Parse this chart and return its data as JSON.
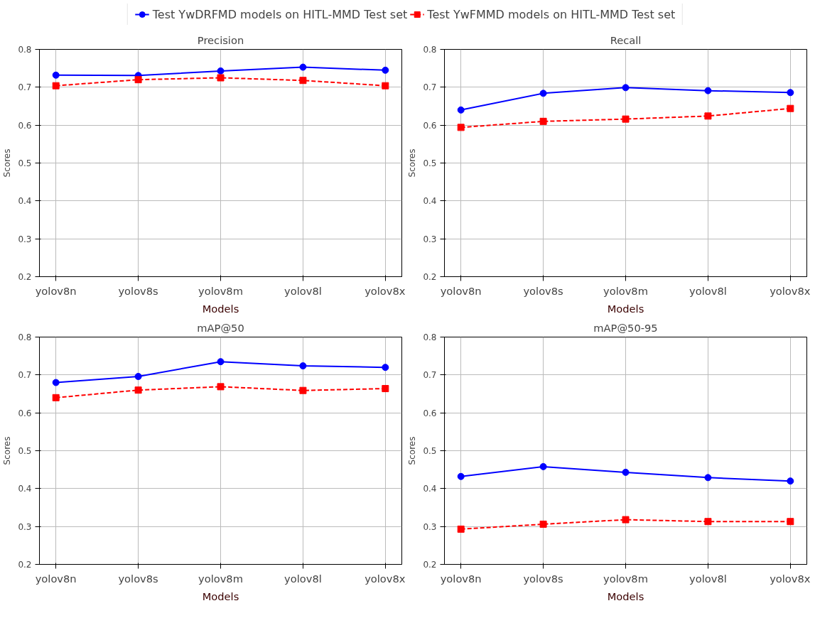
{
  "chart_data": [
    {
      "type": "line",
      "title": "Precision",
      "xlabel": "Models",
      "ylabel": "Scores",
      "categories": [
        "yolov8n",
        "yolov8s",
        "yolov8m",
        "yolov8l",
        "yolov8x"
      ],
      "ylim": [
        0.2,
        0.8
      ],
      "yticks": [
        0.2,
        0.3,
        0.4,
        0.5,
        0.6,
        0.7,
        0.8
      ],
      "grid": true,
      "legend": "top",
      "series": [
        {
          "name": "Test YwDRFMD models on HITL-MMD Test set",
          "color": "#0000ff",
          "marker": "circle",
          "line_style": "solid",
          "values": [
            0.732,
            0.731,
            0.743,
            0.753,
            0.745
          ]
        },
        {
          "name": "Test YwFMMD models on HITL-MMD Test set",
          "color": "#ff0000",
          "marker": "square",
          "line_style": "dashed",
          "values": [
            0.704,
            0.72,
            0.725,
            0.718,
            0.704
          ]
        }
      ]
    },
    {
      "type": "line",
      "title": "Recall",
      "xlabel": "Models",
      "ylabel": "Scores",
      "categories": [
        "yolov8n",
        "yolov8s",
        "yolov8m",
        "yolov8l",
        "yolov8x"
      ],
      "ylim": [
        0.2,
        0.8
      ],
      "yticks": [
        0.2,
        0.3,
        0.4,
        0.5,
        0.6,
        0.7,
        0.8
      ],
      "grid": true,
      "series": [
        {
          "color": "#0000ff",
          "marker": "circle",
          "line_style": "solid",
          "values": [
            0.64,
            0.684,
            0.699,
            0.691,
            0.686
          ]
        },
        {
          "color": "#ff0000",
          "marker": "square",
          "line_style": "dashed",
          "values": [
            0.594,
            0.61,
            0.616,
            0.624,
            0.644
          ]
        }
      ]
    },
    {
      "type": "line",
      "title": "mAP@50",
      "xlabel": "Models",
      "ylabel": "Scores",
      "categories": [
        "yolov8n",
        "yolov8s",
        "yolov8m",
        "yolov8l",
        "yolov8x"
      ],
      "ylim": [
        0.2,
        0.8
      ],
      "yticks": [
        0.2,
        0.3,
        0.4,
        0.5,
        0.6,
        0.7,
        0.8
      ],
      "grid": true,
      "series": [
        {
          "color": "#0000ff",
          "marker": "circle",
          "line_style": "solid",
          "values": [
            0.68,
            0.696,
            0.735,
            0.724,
            0.72
          ]
        },
        {
          "color": "#ff0000",
          "marker": "square",
          "line_style": "dashed",
          "values": [
            0.64,
            0.66,
            0.669,
            0.659,
            0.664
          ]
        }
      ]
    },
    {
      "type": "line",
      "title": "mAP@50-95",
      "xlabel": "Models",
      "ylabel": "Scores",
      "categories": [
        "yolov8n",
        "yolov8s",
        "yolov8m",
        "yolov8l",
        "yolov8x"
      ],
      "ylim": [
        0.2,
        0.8
      ],
      "yticks": [
        0.2,
        0.3,
        0.4,
        0.5,
        0.6,
        0.7,
        0.8
      ],
      "grid": true,
      "series": [
        {
          "color": "#0000ff",
          "marker": "circle",
          "line_style": "solid",
          "values": [
            0.432,
            0.458,
            0.443,
            0.429,
            0.42
          ]
        },
        {
          "color": "#ff0000",
          "marker": "square",
          "line_style": "dashed",
          "values": [
            0.293,
            0.306,
            0.318,
            0.313,
            0.313
          ]
        }
      ]
    }
  ]
}
